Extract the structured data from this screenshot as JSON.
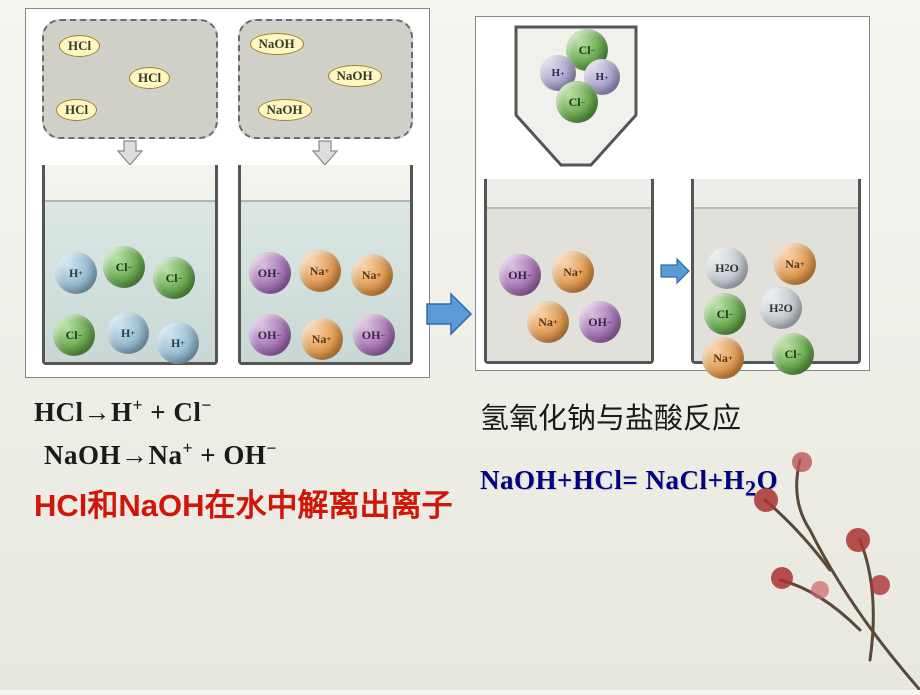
{
  "left_diagram": {
    "hcl_cloud": {
      "labels": [
        "HCl",
        "HCl",
        "HCl"
      ],
      "positions": [
        {
          "l": 15,
          "t": 14
        },
        {
          "l": 85,
          "t": 46
        },
        {
          "l": 12,
          "t": 78
        }
      ]
    },
    "naoh_cloud": {
      "labels": [
        "NaOH",
        "NaOH",
        "NaOH"
      ],
      "positions": [
        {
          "l": 10,
          "t": 12
        },
        {
          "l": 88,
          "t": 44
        },
        {
          "l": 18,
          "t": 78
        }
      ]
    },
    "hcl_ions": [
      {
        "txt": "H⁺",
        "cls": "c-blue",
        "l": 10,
        "t": 50,
        "sm": false
      },
      {
        "txt": "Cl⁻",
        "cls": "c-green",
        "l": 58,
        "t": 44,
        "sm": false
      },
      {
        "txt": "Cl⁻",
        "cls": "c-green",
        "l": 108,
        "t": 55,
        "sm": false
      },
      {
        "txt": "Cl⁻",
        "cls": "c-green",
        "l": 8,
        "t": 112,
        "sm": false
      },
      {
        "txt": "H⁺",
        "cls": "c-blue",
        "l": 62,
        "t": 110,
        "sm": false
      },
      {
        "txt": "H⁺",
        "cls": "c-blue",
        "l": 112,
        "t": 120,
        "sm": false
      }
    ],
    "naoh_ions": [
      {
        "txt": "OH⁻",
        "cls": "c-purple",
        "l": 8,
        "t": 50,
        "sm": false
      },
      {
        "txt": "Na⁺",
        "cls": "c-orange",
        "l": 58,
        "t": 48,
        "sm": false
      },
      {
        "txt": "Na⁺",
        "cls": "c-orange",
        "l": 110,
        "t": 52,
        "sm": false
      },
      {
        "txt": "OH⁻",
        "cls": "c-purple",
        "l": 8,
        "t": 112,
        "sm": false
      },
      {
        "txt": "Na⁺",
        "cls": "c-orange",
        "l": 60,
        "t": 116,
        "sm": false
      },
      {
        "txt": "OH⁻",
        "cls": "c-purple",
        "l": 112,
        "t": 112,
        "sm": false
      }
    ]
  },
  "right_diagram": {
    "funnel_ions": [
      {
        "txt": "Cl⁻",
        "cls": "c-green",
        "l": 60,
        "t": 4,
        "sm": false
      },
      {
        "txt": "H⁺",
        "cls": "c-lav",
        "l": 34,
        "t": 30,
        "sm": true
      },
      {
        "txt": "H⁺",
        "cls": "c-lav",
        "l": 78,
        "t": 34,
        "sm": true
      },
      {
        "txt": "Cl⁻",
        "cls": "c-green",
        "l": 50,
        "t": 56,
        "sm": false
      }
    ],
    "left_beaker_ions": [
      {
        "txt": "OH⁻",
        "cls": "c-purple",
        "l": 12,
        "t": 45,
        "sm": false
      },
      {
        "txt": "Na⁺",
        "cls": "c-orange",
        "l": 65,
        "t": 42,
        "sm": false
      },
      {
        "txt": "Na⁺",
        "cls": "c-orange",
        "l": 40,
        "t": 92,
        "sm": false
      },
      {
        "txt": "OH⁻",
        "cls": "c-purple",
        "l": 92,
        "t": 92,
        "sm": false
      }
    ],
    "right_beaker_ions": [
      {
        "txt": "H₂O",
        "cls": "c-grey",
        "l": 12,
        "t": 38,
        "sm": false
      },
      {
        "txt": "Na⁺",
        "cls": "c-orange",
        "l": 80,
        "t": 34,
        "sm": false
      },
      {
        "txt": "Cl⁻",
        "cls": "c-green",
        "l": 10,
        "t": 84,
        "sm": false
      },
      {
        "txt": "H₂O",
        "cls": "c-grey",
        "l": 66,
        "t": 78,
        "sm": false
      },
      {
        "txt": "Na⁺",
        "cls": "c-orange",
        "l": 8,
        "t": 128,
        "sm": false
      },
      {
        "txt": "Cl⁻",
        "cls": "c-green",
        "l": 78,
        "t": 124,
        "sm": false
      }
    ]
  },
  "equations": {
    "hcl_dissoc": "HCl→H⁺ + Cl⁻",
    "naoh_dissoc": "NaOH→Na⁺ + OH⁻",
    "dissolve_caption": "HCl和NaOH在水中解离出离子",
    "reaction_title": "氢氧化钠与盐酸反应",
    "reaction_eq": "NaOH+HCl= NaCl+H₂O"
  },
  "colors": {
    "arrow_fill": "#5b9bd5",
    "arrow_stroke": "#2e6ca4",
    "red": "#d11507",
    "navy": "#000080"
  }
}
